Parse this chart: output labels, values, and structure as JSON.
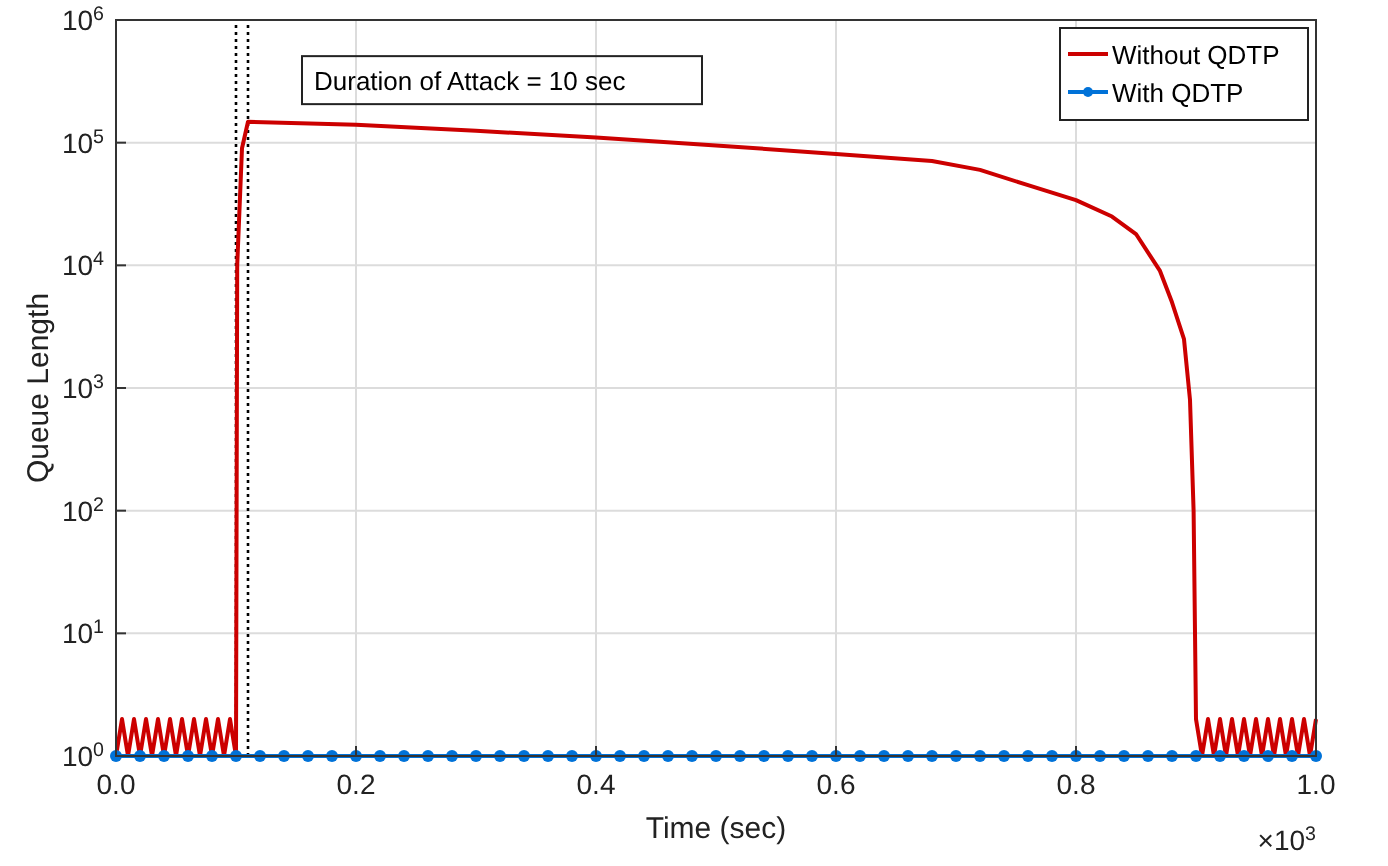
{
  "chart_data": {
    "type": "line",
    "xlabel": "Time (sec)",
    "ylabel": "Queue Length",
    "log": "y",
    "grid": true,
    "legend": "top right",
    "xlim": [
      0,
      1
    ],
    "xticks": [
      {
        "value": 0,
        "label": "0.0"
      },
      0.2,
      0.4,
      0.6,
      0.8,
      {
        "value": 1,
        "label": "1.0"
      }
    ],
    "ylim": [
      1,
      1000000
    ],
    "yticks": [
      {
        "value": 1,
        "label": "10$^{0}$"
      },
      {
        "value": 10,
        "label": "10$^{1}$"
      },
      {
        "value": 100,
        "label": "10$^{2}$"
      },
      {
        "value": 1000,
        "label": "10$^{3}$"
      },
      {
        "value": 10000,
        "label": "10$^{4}$"
      },
      {
        "value": 100000,
        "label": "10$^{5}$"
      },
      {
        "value": 1000000,
        "label": "10$^{6}$"
      }
    ],
    "annotations": [
      {
        "text": "Duration of Attack = 10 sec",
        "x": 0.11,
        "y": 300000
      },
      "×10$^{3}$"
    ],
    "ref_lines": [
      {
        "axis": "x",
        "value": 0.1,
        "color": "#000000",
        "line_style": "dotted"
      },
      {
        "axis": "x",
        "value": 0.11,
        "color": "#000000",
        "line_style": "dotted"
      }
    ],
    "series": [
      {
        "name": "Without QDTP",
        "color": "#cc0000",
        "marker": "none",
        "x": [
          0,
          0.005,
          0.01,
          0.015,
          0.02,
          0.025,
          0.03,
          0.035,
          0.04,
          0.045,
          0.05,
          0.055,
          0.06,
          0.065,
          0.07,
          0.075,
          0.08,
          0.085,
          0.09,
          0.095,
          0.1,
          0.101,
          0.105,
          0.11,
          0.2,
          0.3,
          0.4,
          0.5,
          0.6,
          0.68,
          0.72,
          0.76,
          0.8,
          0.83,
          0.85,
          0.87,
          0.88,
          0.89,
          0.895,
          0.898,
          0.9,
          0.905,
          0.91,
          0.915,
          0.92,
          0.925,
          0.93,
          0.935,
          0.94,
          0.945,
          0.95,
          0.955,
          0.96,
          0.965,
          0.97,
          0.975,
          0.98,
          0.985,
          0.99,
          0.995,
          1
        ],
        "values": [
          1,
          2,
          1,
          2,
          1,
          2,
          1,
          2,
          1,
          2,
          1,
          2,
          1,
          2,
          1,
          2,
          1,
          2,
          1,
          2,
          1,
          10000,
          90000,
          148000,
          140000,
          125000,
          110000,
          95000,
          81000,
          71000,
          60000,
          45000,
          34000,
          25000,
          18000,
          9000,
          5000,
          2500,
          800,
          100,
          2,
          1,
          2,
          1,
          2,
          1,
          2,
          1,
          2,
          1,
          2,
          1,
          2,
          1,
          2,
          1,
          2,
          1,
          2,
          1,
          2
        ]
      },
      {
        "name": "With QDTP",
        "color": "#0072d8",
        "marker": "circle",
        "x": [
          0,
          0.02,
          0.04,
          0.06,
          0.08,
          0.1,
          0.12,
          0.14,
          0.16,
          0.18,
          0.2,
          0.22,
          0.24,
          0.26,
          0.28,
          0.3,
          0.32,
          0.34,
          0.36,
          0.38,
          0.4,
          0.42,
          0.44,
          0.46,
          0.48,
          0.5,
          0.52,
          0.54,
          0.56,
          0.58,
          0.6,
          0.62,
          0.64,
          0.66,
          0.68,
          0.7,
          0.72,
          0.74,
          0.76,
          0.78,
          0.8,
          0.82,
          0.84,
          0.86,
          0.88,
          0.9,
          0.92,
          0.94,
          0.96,
          0.98,
          1
        ],
        "values": [
          1,
          1,
          1,
          1,
          1,
          1,
          1,
          1,
          1,
          1,
          1,
          1,
          1,
          1,
          1,
          1,
          1,
          1,
          1,
          1,
          1,
          1,
          1,
          1,
          1,
          1,
          1,
          1,
          1,
          1,
          1,
          1,
          1,
          1,
          1,
          1,
          1,
          1,
          1,
          1,
          1,
          1,
          1,
          1,
          1,
          1,
          1,
          1,
          1,
          1,
          1
        ]
      }
    ]
  }
}
